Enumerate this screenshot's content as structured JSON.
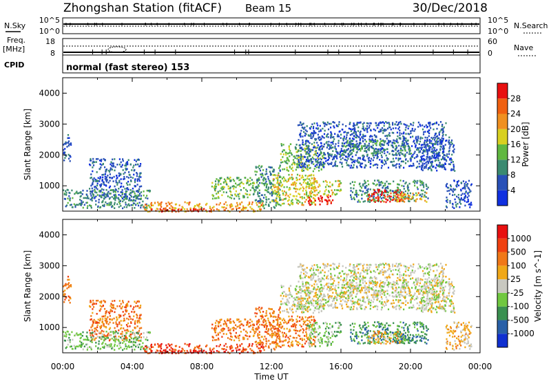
{
  "header": {
    "station": "Zhongshan Station (fitACF)",
    "beam": "Beam 15",
    "date": "30/Dec/2018"
  },
  "status_panels": {
    "nsky_label": "N.Sky",
    "nsearch_label": "N.Search",
    "noise_ticks": [
      "10^5",
      "10^0"
    ],
    "noise_ticks_right": [
      "10^5",
      "10^0"
    ],
    "freq_label": "Freq.",
    "freq_unit": "[MHz]",
    "freq_ticks": [
      "18",
      "8"
    ],
    "nave_label": "Nave",
    "nave_ticks": [
      "60",
      "0"
    ],
    "cpid_label": "CPID",
    "cpid_text": "normal (fast stereo) 153"
  },
  "chart_data": [
    {
      "type": "heatmap",
      "name": "power",
      "ylabel": "Slant Range [km]",
      "ylim": [
        180,
        4500
      ],
      "yticks": [
        1000,
        2000,
        3000,
        4000
      ],
      "xlim": [
        0,
        24
      ],
      "colorbar_label": "Power [dB]",
      "colorbar_ticks": [
        "4",
        "8",
        "12",
        "16",
        "20",
        "24",
        "28"
      ],
      "colorbar_colors": [
        "#1030e0",
        "#2850b8",
        "#3a8a70",
        "#60b840",
        "#d8d020",
        "#f09020",
        "#f06010",
        "#e81010"
      ],
      "regions": [
        {
          "t": [
            0.0,
            0.5
          ],
          "r": [
            1800,
            2700
          ],
          "level": 1
        },
        {
          "t": [
            1.5,
            4.5
          ],
          "r": [
            600,
            1900
          ],
          "level": 1
        },
        {
          "t": [
            0.0,
            5.0
          ],
          "r": [
            300,
            900
          ],
          "level": 2
        },
        {
          "t": [
            4.5,
            11.5
          ],
          "r": [
            190,
            500
          ],
          "level": 5
        },
        {
          "t": [
            5.0,
            8.5
          ],
          "r": [
            190,
            280
          ],
          "level": 7
        },
        {
          "t": [
            8.5,
            11.0
          ],
          "r": [
            600,
            1300
          ],
          "level": 3
        },
        {
          "t": [
            11.0,
            12.5
          ],
          "r": [
            300,
            1700
          ],
          "level": 2
        },
        {
          "t": [
            12.5,
            15.0
          ],
          "r": [
            1500,
            2400
          ],
          "level": 3
        },
        {
          "t": [
            12.0,
            14.5
          ],
          "r": [
            400,
            1400
          ],
          "level": 4
        },
        {
          "t": [
            14.0,
            15.5
          ],
          "r": [
            400,
            700
          ],
          "level": 7
        },
        {
          "t": [
            14.0,
            16.0
          ],
          "r": [
            700,
            1200
          ],
          "level": 4
        },
        {
          "t": [
            13.5,
            22.0
          ],
          "r": [
            1600,
            3100
          ],
          "level": 1
        },
        {
          "t": [
            16.0,
            20.0
          ],
          "r": [
            2000,
            2500
          ],
          "level": 2
        },
        {
          "t": [
            16.5,
            21.0
          ],
          "r": [
            500,
            1200
          ],
          "level": 2
        },
        {
          "t": [
            17.5,
            19.5
          ],
          "r": [
            500,
            900
          ],
          "level": 7
        },
        {
          "t": [
            19.0,
            21.0
          ],
          "r": [
            500,
            800
          ],
          "level": 5
        },
        {
          "t": [
            20.5,
            22.5
          ],
          "r": [
            1500,
            2600
          ],
          "level": 1
        },
        {
          "t": [
            22.0,
            23.5
          ],
          "r": [
            300,
            1200
          ],
          "level": 1
        }
      ]
    },
    {
      "type": "heatmap",
      "name": "velocity",
      "ylabel": "Slant Range [km]",
      "ylim": [
        180,
        4500
      ],
      "yticks": [
        1000,
        2000,
        3000,
        4000
      ],
      "xlim": [
        0,
        24
      ],
      "xticks": [
        "00:00",
        "04:00",
        "08:00",
        "12:00",
        "16:00",
        "20:00",
        "00:00"
      ],
      "xlabel": "Time UT",
      "colorbar_label": "Velocity [m s^-1]",
      "colorbar_ticks": [
        "1000",
        "500",
        "100",
        "25",
        "-25",
        "-100",
        "-500",
        "-1000"
      ],
      "colorbar_colors": [
        "#1030d0",
        "#2860a8",
        "#3a9050",
        "#70c840",
        "#c8c8c0",
        "#f0a818",
        "#f07818",
        "#f04010",
        "#e81010"
      ],
      "regions": [
        {
          "t": [
            0.0,
            0.5
          ],
          "r": [
            1800,
            2700
          ],
          "level": 6
        },
        {
          "t": [
            1.5,
            4.5
          ],
          "r": [
            600,
            1900
          ],
          "level": 6
        },
        {
          "t": [
            0.0,
            5.0
          ],
          "r": [
            300,
            900
          ],
          "level": 3
        },
        {
          "t": [
            4.5,
            11.5
          ],
          "r": [
            190,
            500
          ],
          "level": 7
        },
        {
          "t": [
            5.0,
            8.5
          ],
          "r": [
            190,
            280
          ],
          "level": 8
        },
        {
          "t": [
            8.5,
            11.0
          ],
          "r": [
            600,
            1300
          ],
          "level": 6
        },
        {
          "t": [
            11.0,
            12.5
          ],
          "r": [
            300,
            1700
          ],
          "level": 6
        },
        {
          "t": [
            12.5,
            15.0
          ],
          "r": [
            1500,
            2400
          ],
          "level": 4
        },
        {
          "t": [
            12.0,
            14.5
          ],
          "r": [
            400,
            1400
          ],
          "level": 6
        },
        {
          "t": [
            14.0,
            15.5
          ],
          "r": [
            400,
            700
          ],
          "level": 3
        },
        {
          "t": [
            14.0,
            16.0
          ],
          "r": [
            700,
            1200
          ],
          "level": 3
        },
        {
          "t": [
            13.5,
            22.0
          ],
          "r": [
            1600,
            3100
          ],
          "level": 4
        },
        {
          "t": [
            16.0,
            20.0
          ],
          "r": [
            2000,
            2500
          ],
          "level": 4
        },
        {
          "t": [
            16.5,
            21.0
          ],
          "r": [
            500,
            1200
          ],
          "level": 2
        },
        {
          "t": [
            17.5,
            19.5
          ],
          "r": [
            500,
            900
          ],
          "level": 5
        },
        {
          "t": [
            19.0,
            21.0
          ],
          "r": [
            500,
            800
          ],
          "level": 2
        },
        {
          "t": [
            20.5,
            22.5
          ],
          "r": [
            1500,
            2600
          ],
          "level": 4
        },
        {
          "t": [
            22.0,
            23.5
          ],
          "r": [
            300,
            1200
          ],
          "level": 5
        }
      ]
    }
  ]
}
